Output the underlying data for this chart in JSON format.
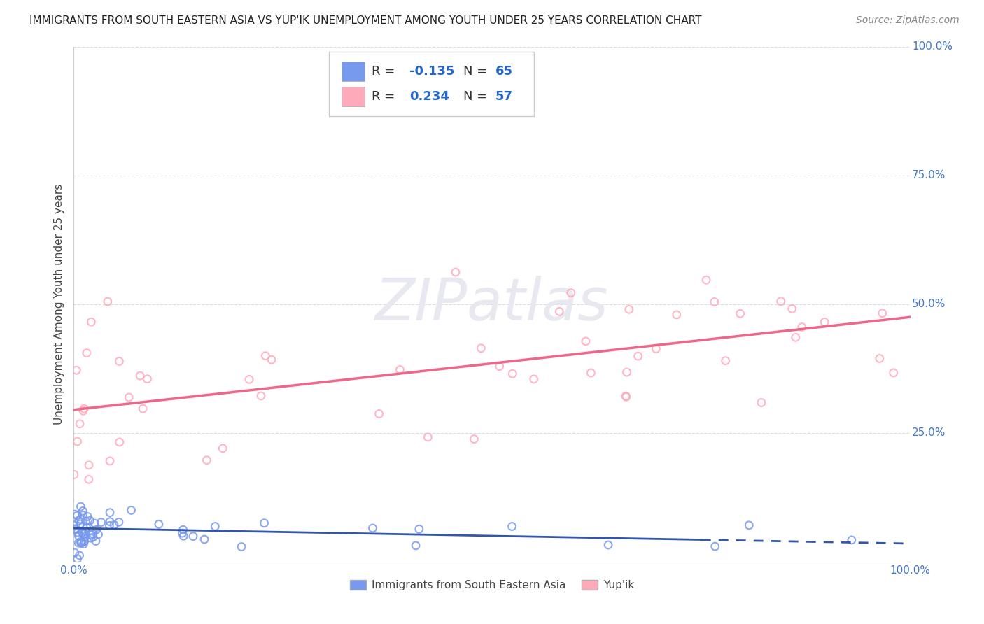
{
  "title": "IMMIGRANTS FROM SOUTH EASTERN ASIA VS YUP'IK UNEMPLOYMENT AMONG YOUTH UNDER 25 YEARS CORRELATION CHART",
  "source": "Source: ZipAtlas.com",
  "ylabel": "Unemployment Among Youth under 25 years",
  "legend_labels": [
    "Immigrants from South Eastern Asia",
    "Yup'ik"
  ],
  "blue_R": "-0.135",
  "blue_N": "65",
  "pink_R": "0.234",
  "pink_N": "57",
  "xlim": [
    0.0,
    1.0
  ],
  "ylim": [
    0.0,
    1.0
  ],
  "background_color": "#ffffff",
  "grid_color": "#dddddd",
  "blue_color": "#7799ee",
  "blue_edge_color": "#5577cc",
  "blue_line_color": "#3355aa",
  "pink_color": "#ffaabb",
  "pink_edge_color": "#ee8899",
  "pink_line_color": "#ee6688",
  "watermark_color": "#e8e8f0",
  "tick_color": "#4477cc",
  "label_color": "#444444",
  "title_color": "#222222",
  "source_color": "#888888",
  "blue_line_x0": 0.0,
  "blue_line_x1": 1.0,
  "blue_line_y0": 0.065,
  "blue_line_y1": 0.035,
  "blue_line_solid_x1": 0.75,
  "pink_line_x0": 0.0,
  "pink_line_x1": 1.0,
  "pink_line_y0": 0.295,
  "pink_line_y1": 0.475,
  "title_fontsize": 11,
  "axis_label_fontsize": 11,
  "tick_fontsize": 11,
  "legend_fontsize": 13,
  "source_fontsize": 10,
  "watermark_fontsize": 60
}
